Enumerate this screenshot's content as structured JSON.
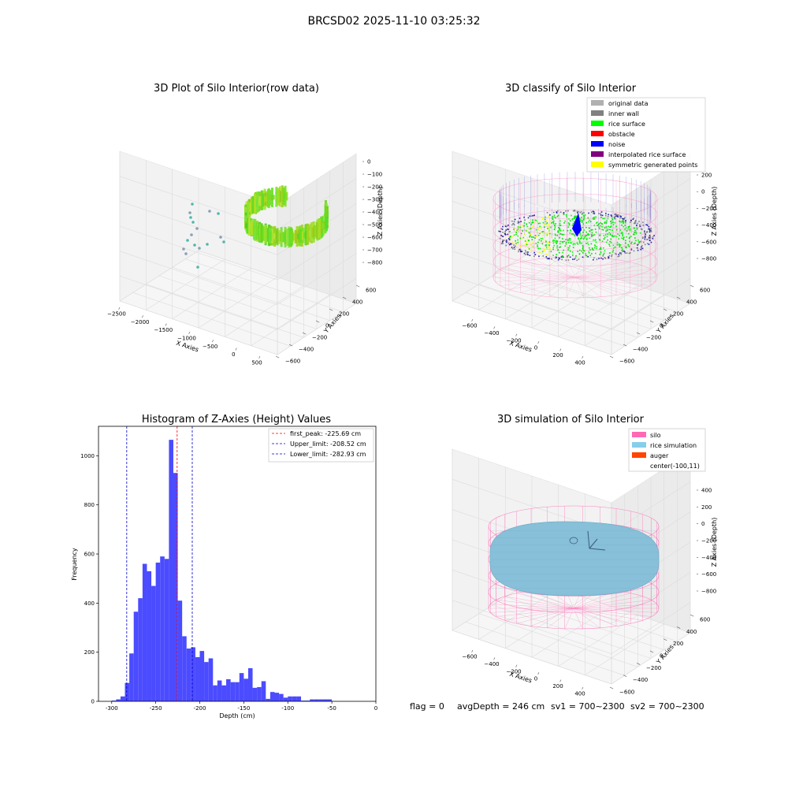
{
  "figure_title": "BRCSD02 2025-11-10 03:25:32",
  "status_line": {
    "flag": "flag = 0",
    "avg_depth": "avgDepth = 246 cm",
    "sv1": "sv1 = 700~2300",
    "sv2": "sv2 = 700~2300"
  },
  "chart_data": [
    {
      "type": "scatter",
      "projection": "3d",
      "title": "3D Plot of Silo Interior(row data)",
      "xlabel": "X Axies",
      "ylabel": "Y Axies",
      "zlabel": "Z Axies (Depth)",
      "x_ticks": [
        "−2500",
        "−2000",
        "−1500",
        "−1000",
        "−500",
        "0",
        "500"
      ],
      "y_ticks": [
        "−600",
        "−400",
        "−200",
        "0",
        "200",
        "400",
        "600"
      ],
      "z_ticks": [
        "0",
        "−100",
        "−200",
        "−300",
        "−400",
        "−500",
        "−600",
        "−700",
        "−800"
      ],
      "xlim": [
        -2500,
        500
      ],
      "ylim": [
        -600,
        600
      ],
      "zlim": [
        -850,
        0
      ],
      "colormap": "viridis",
      "grid": true
    },
    {
      "type": "scatter",
      "projection": "3d",
      "title": "3D classify of Silo Interior",
      "xlabel": "X Axies",
      "ylabel": "Y Axies",
      "zlabel": "Z Axies (Depth)",
      "x_ticks": [
        "−600",
        "−400",
        "−200",
        "0",
        "200",
        "400"
      ],
      "y_ticks": [
        "−600",
        "−400",
        "−200",
        "0",
        "200",
        "400",
        "600"
      ],
      "z_ticks": [
        "200",
        "0",
        "−200",
        "−400",
        "−600",
        "−800"
      ],
      "legend_position": "top-right",
      "legend": [
        {
          "label": "original data",
          "color": "#b0b0b0"
        },
        {
          "label": "inner wall",
          "color": "#808080"
        },
        {
          "label": "rice surface",
          "color": "#00ff00"
        },
        {
          "label": "obstacle",
          "color": "#ff0000"
        },
        {
          "label": "noise",
          "color": "#0000ff"
        },
        {
          "label": "interpolated rice surface",
          "color": "#800080"
        },
        {
          "label": "symmetric generated points",
          "color": "#ffff00"
        }
      ],
      "grid": true
    },
    {
      "type": "bar",
      "title": "Histogram of Z-Axies (Height) Values",
      "xlabel": "Depth (cm)",
      "ylabel": "Frequency",
      "xlim": [
        -315,
        0
      ],
      "ylim": [
        0,
        1120
      ],
      "x_ticks": [
        -300,
        -250,
        -200,
        -150,
        -100,
        -50,
        0
      ],
      "y_ticks": [
        0,
        200,
        400,
        600,
        800,
        1000
      ],
      "bin_width": 5,
      "bins": [
        {
          "x0": -300,
          "y": 3
        },
        {
          "x0": -295,
          "y": 8
        },
        {
          "x0": -290,
          "y": 20
        },
        {
          "x0": -285,
          "y": 75
        },
        {
          "x0": -280,
          "y": 195
        },
        {
          "x0": -275,
          "y": 365
        },
        {
          "x0": -270,
          "y": 420
        },
        {
          "x0": -265,
          "y": 560
        },
        {
          "x0": -260,
          "y": 530
        },
        {
          "x0": -255,
          "y": 470
        },
        {
          "x0": -250,
          "y": 565
        },
        {
          "x0": -245,
          "y": 590
        },
        {
          "x0": -240,
          "y": 580
        },
        {
          "x0": -235,
          "y": 1065
        },
        {
          "x0": -230,
          "y": 930
        },
        {
          "x0": -225,
          "y": 410
        },
        {
          "x0": -220,
          "y": 265
        },
        {
          "x0": -215,
          "y": 215
        },
        {
          "x0": -210,
          "y": 220
        },
        {
          "x0": -205,
          "y": 180
        },
        {
          "x0": -200,
          "y": 205
        },
        {
          "x0": -195,
          "y": 160
        },
        {
          "x0": -190,
          "y": 175
        },
        {
          "x0": -185,
          "y": 65
        },
        {
          "x0": -180,
          "y": 85
        },
        {
          "x0": -175,
          "y": 65
        },
        {
          "x0": -170,
          "y": 90
        },
        {
          "x0": -165,
          "y": 78
        },
        {
          "x0": -160,
          "y": 78
        },
        {
          "x0": -155,
          "y": 115
        },
        {
          "x0": -150,
          "y": 92
        },
        {
          "x0": -145,
          "y": 135
        },
        {
          "x0": -140,
          "y": 55
        },
        {
          "x0": -135,
          "y": 58
        },
        {
          "x0": -130,
          "y": 82
        },
        {
          "x0": -125,
          "y": 10
        },
        {
          "x0": -120,
          "y": 38
        },
        {
          "x0": -115,
          "y": 35
        },
        {
          "x0": -110,
          "y": 30
        },
        {
          "x0": -105,
          "y": 15
        },
        {
          "x0": -100,
          "y": 20
        },
        {
          "x0": -95,
          "y": 20
        },
        {
          "x0": -90,
          "y": 20
        },
        {
          "x0": -85,
          "y": 3
        },
        {
          "x0": -80,
          "y": 3
        },
        {
          "x0": -75,
          "y": 8
        },
        {
          "x0": -70,
          "y": 8
        },
        {
          "x0": -65,
          "y": 8
        },
        {
          "x0": -60,
          "y": 8
        },
        {
          "x0": -55,
          "y": 8
        }
      ],
      "bar_color": "#4b4bff",
      "legend_position": "top-right",
      "vlines": [
        {
          "label": "first_peak: -225.69 cm",
          "x": -225.69,
          "color": "#ff0000"
        },
        {
          "label": "Upper_limit: -208.52 cm",
          "x": -208.52,
          "color": "#0000cc"
        },
        {
          "label": "Lower_limit: -282.93 cm",
          "x": -282.93,
          "color": "#0000cc"
        }
      ]
    },
    {
      "type": "scatter",
      "projection": "3d",
      "title": "3D simulation of Silo Interior",
      "xlabel": "X Axies",
      "ylabel": "Y Axies",
      "zlabel": "Z Axies (Depth)",
      "x_ticks": [
        "−600",
        "−400",
        "−200",
        "0",
        "200",
        "400"
      ],
      "y_ticks": [
        "−600",
        "−400",
        "−200",
        "0",
        "200",
        "400",
        "600"
      ],
      "z_ticks": [
        "400",
        "200",
        "0",
        "−200",
        "−400",
        "−600",
        "−800"
      ],
      "legend_position": "top-right",
      "legend": [
        {
          "label": "silo",
          "color": "#ff69b4"
        },
        {
          "label": "rice simulation",
          "color": "#87ceeb"
        },
        {
          "label": "auger",
          "color": "#ff4500"
        },
        {
          "label": "center(-100,11)",
          "color": ""
        }
      ],
      "grid": true
    }
  ]
}
